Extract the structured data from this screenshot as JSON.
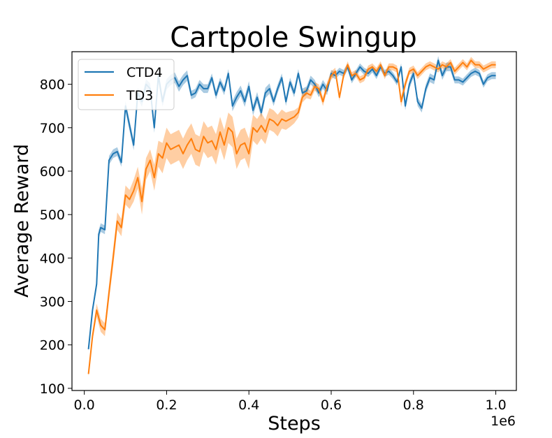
{
  "chart_data": {
    "type": "line",
    "title": "Cartpole Swingup",
    "xlabel": "Steps",
    "ylabel": "Average Reward",
    "x_offset_label": "1e6",
    "xlim": [
      -0.03,
      1.05
    ],
    "ylim": [
      95,
      875
    ],
    "xticks": [
      0.0,
      0.2,
      0.4,
      0.6,
      0.8,
      1.0
    ],
    "xtick_labels": [
      "0.0",
      "0.2",
      "0.4",
      "0.6",
      "0.8",
      "1.0"
    ],
    "yticks": [
      100,
      200,
      300,
      400,
      500,
      600,
      700,
      800
    ],
    "ytick_labels": [
      "100",
      "200",
      "300",
      "400",
      "500",
      "600",
      "700",
      "800"
    ],
    "legend_position": "top-left",
    "grid": false,
    "series": [
      {
        "name": "CTD4",
        "color": "#1f77b4",
        "points": [
          [
            0.01,
            190
          ],
          [
            0.02,
            280
          ],
          [
            0.03,
            340
          ],
          [
            0.035,
            455
          ],
          [
            0.04,
            470
          ],
          [
            0.05,
            465
          ],
          [
            0.06,
            625
          ],
          [
            0.07,
            640
          ],
          [
            0.08,
            645
          ],
          [
            0.09,
            620
          ],
          [
            0.1,
            750
          ],
          [
            0.11,
            705
          ],
          [
            0.12,
            660
          ],
          [
            0.13,
            780
          ],
          [
            0.14,
            760
          ],
          [
            0.15,
            800
          ],
          [
            0.16,
            790
          ],
          [
            0.17,
            700
          ],
          [
            0.18,
            820
          ],
          [
            0.19,
            760
          ],
          [
            0.2,
            800
          ],
          [
            0.21,
            810
          ],
          [
            0.22,
            815
          ],
          [
            0.23,
            795
          ],
          [
            0.24,
            810
          ],
          [
            0.25,
            820
          ],
          [
            0.26,
            775
          ],
          [
            0.27,
            780
          ],
          [
            0.28,
            800
          ],
          [
            0.29,
            790
          ],
          [
            0.3,
            790
          ],
          [
            0.31,
            815
          ],
          [
            0.32,
            775
          ],
          [
            0.33,
            805
          ],
          [
            0.34,
            785
          ],
          [
            0.35,
            825
          ],
          [
            0.36,
            750
          ],
          [
            0.37,
            770
          ],
          [
            0.38,
            785
          ],
          [
            0.39,
            760
          ],
          [
            0.4,
            795
          ],
          [
            0.41,
            740
          ],
          [
            0.42,
            770
          ],
          [
            0.43,
            735
          ],
          [
            0.44,
            780
          ],
          [
            0.45,
            790
          ],
          [
            0.46,
            760
          ],
          [
            0.47,
            790
          ],
          [
            0.48,
            815
          ],
          [
            0.49,
            760
          ],
          [
            0.5,
            805
          ],
          [
            0.51,
            780
          ],
          [
            0.52,
            825
          ],
          [
            0.53,
            780
          ],
          [
            0.54,
            785
          ],
          [
            0.55,
            810
          ],
          [
            0.56,
            800
          ],
          [
            0.57,
            780
          ],
          [
            0.58,
            800
          ],
          [
            0.59,
            785
          ],
          [
            0.6,
            825
          ],
          [
            0.61,
            820
          ],
          [
            0.62,
            830
          ],
          [
            0.63,
            825
          ],
          [
            0.64,
            840
          ],
          [
            0.65,
            810
          ],
          [
            0.66,
            825
          ],
          [
            0.67,
            840
          ],
          [
            0.68,
            830
          ],
          [
            0.69,
            825
          ],
          [
            0.7,
            835
          ],
          [
            0.71,
            820
          ],
          [
            0.72,
            840
          ],
          [
            0.73,
            825
          ],
          [
            0.74,
            830
          ],
          [
            0.75,
            820
          ],
          [
            0.76,
            805
          ],
          [
            0.77,
            840
          ],
          [
            0.78,
            750
          ],
          [
            0.79,
            800
          ],
          [
            0.8,
            825
          ],
          [
            0.81,
            760
          ],
          [
            0.82,
            745
          ],
          [
            0.83,
            790
          ],
          [
            0.84,
            815
          ],
          [
            0.85,
            810
          ],
          [
            0.86,
            855
          ],
          [
            0.87,
            820
          ],
          [
            0.88,
            840
          ],
          [
            0.89,
            840
          ],
          [
            0.9,
            810
          ],
          [
            0.91,
            810
          ],
          [
            0.92,
            805
          ],
          [
            0.93,
            815
          ],
          [
            0.94,
            825
          ],
          [
            0.95,
            830
          ],
          [
            0.96,
            825
          ],
          [
            0.97,
            800
          ],
          [
            0.98,
            815
          ],
          [
            0.99,
            820
          ],
          [
            1.0,
            820
          ]
        ],
        "band": [
          5,
          8,
          10,
          10,
          10,
          10,
          10,
          10,
          10,
          10,
          12,
          12,
          12,
          12,
          12,
          12,
          12,
          12,
          12,
          12,
          12,
          12,
          12,
          12,
          12,
          12,
          10,
          10,
          10,
          10,
          10,
          10,
          10,
          10,
          10,
          10,
          12,
          12,
          12,
          12,
          12,
          12,
          12,
          12,
          12,
          12,
          10,
          10,
          10,
          10,
          10,
          10,
          10,
          10,
          10,
          10,
          10,
          10,
          10,
          10,
          8,
          8,
          8,
          8,
          8,
          8,
          8,
          8,
          8,
          8,
          8,
          8,
          8,
          8,
          8,
          8,
          8,
          8,
          10,
          10,
          10,
          10,
          10,
          10,
          10,
          10,
          10,
          10,
          10,
          10,
          8,
          8,
          8,
          8,
          8,
          8,
          8,
          8,
          8,
          8,
          8
        ]
      },
      {
        "name": "TD3",
        "color": "#ff7f0e",
        "points": [
          [
            0.01,
            133
          ],
          [
            0.02,
            220
          ],
          [
            0.03,
            280
          ],
          [
            0.04,
            245
          ],
          [
            0.05,
            235
          ],
          [
            0.06,
            320
          ],
          [
            0.07,
            400
          ],
          [
            0.08,
            485
          ],
          [
            0.09,
            470
          ],
          [
            0.1,
            545
          ],
          [
            0.11,
            535
          ],
          [
            0.12,
            555
          ],
          [
            0.13,
            585
          ],
          [
            0.14,
            530
          ],
          [
            0.15,
            605
          ],
          [
            0.16,
            625
          ],
          [
            0.17,
            585
          ],
          [
            0.18,
            640
          ],
          [
            0.19,
            630
          ],
          [
            0.2,
            665
          ],
          [
            0.21,
            650
          ],
          [
            0.22,
            655
          ],
          [
            0.23,
            660
          ],
          [
            0.24,
            640
          ],
          [
            0.25,
            660
          ],
          [
            0.26,
            675
          ],
          [
            0.27,
            650
          ],
          [
            0.28,
            645
          ],
          [
            0.29,
            680
          ],
          [
            0.3,
            665
          ],
          [
            0.31,
            670
          ],
          [
            0.32,
            650
          ],
          [
            0.33,
            690
          ],
          [
            0.34,
            660
          ],
          [
            0.35,
            700
          ],
          [
            0.36,
            690
          ],
          [
            0.37,
            640
          ],
          [
            0.38,
            660
          ],
          [
            0.39,
            665
          ],
          [
            0.4,
            640
          ],
          [
            0.41,
            700
          ],
          [
            0.42,
            690
          ],
          [
            0.43,
            705
          ],
          [
            0.44,
            690
          ],
          [
            0.45,
            720
          ],
          [
            0.46,
            715
          ],
          [
            0.47,
            705
          ],
          [
            0.48,
            720
          ],
          [
            0.49,
            715
          ],
          [
            0.5,
            720
          ],
          [
            0.51,
            725
          ],
          [
            0.52,
            735
          ],
          [
            0.53,
            770
          ],
          [
            0.54,
            780
          ],
          [
            0.55,
            775
          ],
          [
            0.56,
            795
          ],
          [
            0.57,
            790
          ],
          [
            0.58,
            760
          ],
          [
            0.59,
            795
          ],
          [
            0.6,
            820
          ],
          [
            0.61,
            830
          ],
          [
            0.62,
            770
          ],
          [
            0.63,
            820
          ],
          [
            0.64,
            845
          ],
          [
            0.65,
            820
          ],
          [
            0.66,
            825
          ],
          [
            0.67,
            810
          ],
          [
            0.68,
            815
          ],
          [
            0.69,
            835
          ],
          [
            0.7,
            840
          ],
          [
            0.71,
            830
          ],
          [
            0.72,
            845
          ],
          [
            0.73,
            820
          ],
          [
            0.74,
            840
          ],
          [
            0.75,
            840
          ],
          [
            0.76,
            835
          ],
          [
            0.77,
            760
          ],
          [
            0.78,
            800
          ],
          [
            0.79,
            830
          ],
          [
            0.8,
            835
          ],
          [
            0.81,
            820
          ],
          [
            0.82,
            830
          ],
          [
            0.83,
            840
          ],
          [
            0.84,
            845
          ],
          [
            0.85,
            840
          ],
          [
            0.86,
            835
          ],
          [
            0.87,
            845
          ],
          [
            0.88,
            840
          ],
          [
            0.89,
            850
          ],
          [
            0.9,
            830
          ],
          [
            0.91,
            840
          ],
          [
            0.92,
            850
          ],
          [
            0.93,
            840
          ],
          [
            0.94,
            855
          ],
          [
            0.95,
            845
          ],
          [
            0.96,
            845
          ],
          [
            0.97,
            835
          ],
          [
            0.98,
            840
          ],
          [
            0.99,
            845
          ],
          [
            1.0,
            845
          ]
        ],
        "band": [
          5,
          10,
          15,
          15,
          15,
          18,
          20,
          20,
          20,
          22,
          22,
          25,
          25,
          30,
          25,
          25,
          30,
          30,
          35,
          35,
          35,
          35,
          35,
          35,
          35,
          35,
          35,
          35,
          35,
          35,
          35,
          35,
          35,
          35,
          35,
          35,
          35,
          35,
          35,
          35,
          30,
          30,
          30,
          28,
          25,
          25,
          25,
          22,
          20,
          18,
          15,
          12,
          12,
          12,
          10,
          10,
          10,
          10,
          10,
          10,
          8,
          8,
          8,
          8,
          8,
          8,
          8,
          8,
          8,
          8,
          8,
          8,
          8,
          8,
          8,
          8,
          12,
          10,
          8,
          8,
          8,
          8,
          8,
          8,
          8,
          8,
          8,
          8,
          8,
          8,
          8,
          8,
          8,
          8,
          8,
          8,
          8,
          8,
          8,
          8
        ]
      }
    ]
  }
}
